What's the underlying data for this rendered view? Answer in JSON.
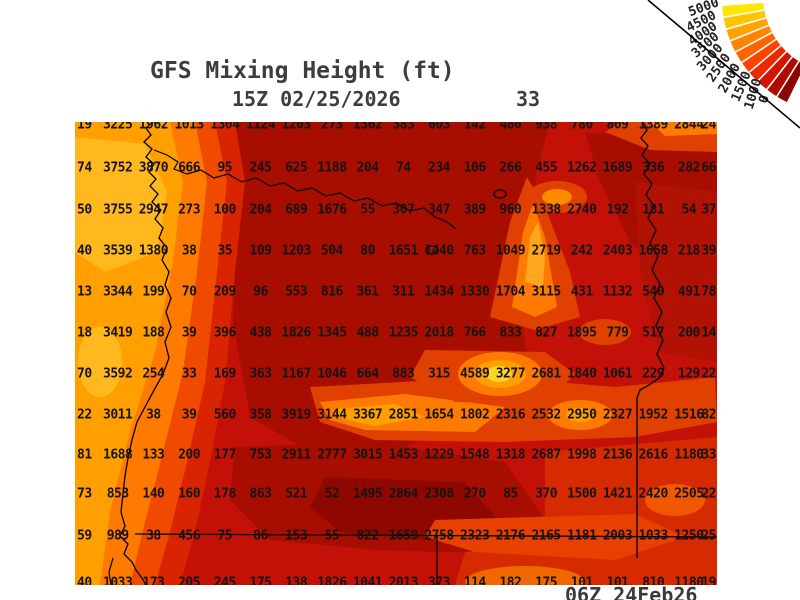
{
  "header": {
    "title": "GFS Mixing Height (ft)",
    "valid_time": "15Z 02/25/2026",
    "forecast_hour": "33"
  },
  "footer": {
    "init_time": "06Z 24Feb26"
  },
  "chart_data": {
    "type": "heatmap",
    "title": "GFS Mixing Height (ft)",
    "valid_time_label": "15Z 02/25/2026",
    "forecast_hour": 33,
    "init_time_label": "06Z 24Feb26",
    "units": "ft",
    "grid_shape": {
      "rows": 12,
      "cols": 19
    },
    "colorbar": {
      "tick_labels": [
        "5000",
        "4500",
        "4000",
        "3500",
        "3000",
        "2500",
        "2000",
        "1500",
        "1000",
        "0"
      ],
      "colors_high_to_low": [
        "#FFE600",
        "#FFC400",
        "#FFA300",
        "#FF8300",
        "#FF6300",
        "#FF4300",
        "#EB2800",
        "#D11500",
        "#B00B00",
        "#8C0500"
      ]
    },
    "field_colors": {
      "base": "#C31107",
      "dark": "#A80E00",
      "darker": "#8E0800",
      "bright": "#E04000",
      "orange": "#FF7A00",
      "light_orange": "#FFA000",
      "yellow_hotspot": "#FFD428",
      "coast_highlight": "#FFB91E"
    },
    "grid_values": [
      [
        "19",
        "3225",
        "1962",
        "1013",
        "1304",
        "1124",
        "1203",
        "273",
        "1362",
        "383",
        "603",
        "142",
        "480",
        "938",
        "780",
        "809",
        "1389",
        "2844",
        "24"
      ],
      [
        "74",
        "3752",
        "3870",
        "666",
        "95",
        "245",
        "625",
        "1188",
        "204",
        "74",
        "234",
        "106",
        "266",
        "455",
        "1262",
        "1689",
        "336",
        "282",
        "66"
      ],
      [
        "50",
        "3755",
        "2947",
        "273",
        "100",
        "204",
        "689",
        "1676",
        "55",
        "307",
        "347",
        "389",
        "960",
        "1338",
        "2740",
        "192",
        "181",
        "54",
        "37"
      ],
      [
        "40",
        "3539",
        "1380",
        "38",
        "35",
        "109",
        "1203",
        "504",
        "80",
        "1651",
        "1440",
        "763",
        "1049",
        "2719",
        "242",
        "2403",
        "1658",
        "218",
        "39"
      ],
      [
        "13",
        "3344",
        "199",
        "70",
        "209",
        "96",
        "553",
        "816",
        "361",
        "311",
        "1434",
        "1330",
        "1704",
        "3115",
        "431",
        "1132",
        "540",
        "491",
        "78"
      ],
      [
        "18",
        "3419",
        "188",
        "39",
        "396",
        "438",
        "1826",
        "1345",
        "488",
        "1235",
        "2018",
        "766",
        "833",
        "827",
        "1895",
        "779",
        "517",
        "200",
        "14"
      ],
      [
        "70",
        "3592",
        "254",
        "33",
        "169",
        "363",
        "1167",
        "1046",
        "664",
        "883",
        "315",
        "4589",
        "3277",
        "2681",
        "1840",
        "1061",
        "229",
        "129",
        "22"
      ],
      [
        "22",
        "3011",
        "38",
        "39",
        "560",
        "358",
        "3919",
        "3144",
        "3367",
        "2851",
        "1654",
        "1802",
        "2316",
        "2532",
        "2950",
        "2327",
        "1952",
        "1516",
        "82"
      ],
      [
        "81",
        "1688",
        "133",
        "200",
        "177",
        "753",
        "2911",
        "2777",
        "3015",
        "1453",
        "1229",
        "1548",
        "1318",
        "2687",
        "1998",
        "2136",
        "2616",
        "1180",
        "33"
      ],
      [
        "73",
        "853",
        "140",
        "160",
        "178",
        "863",
        "521",
        "52",
        "1495",
        "2864",
        "2308",
        "270",
        "85",
        "370",
        "1500",
        "1421",
        "2420",
        "2505",
        "22"
      ],
      [
        "59",
        "989",
        "38",
        "456",
        "75",
        "86",
        "153",
        "55",
        "822",
        "1659",
        "2758",
        "2323",
        "2176",
        "2165",
        "1181",
        "2003",
        "1033",
        "1250",
        "25"
      ],
      [
        "40",
        "1033",
        "173",
        "205",
        "245",
        "175",
        "138",
        "1826",
        "1041",
        "2013",
        "373",
        "114",
        "182",
        "175",
        "101",
        "101",
        "810",
        "1180",
        "19"
      ]
    ]
  }
}
